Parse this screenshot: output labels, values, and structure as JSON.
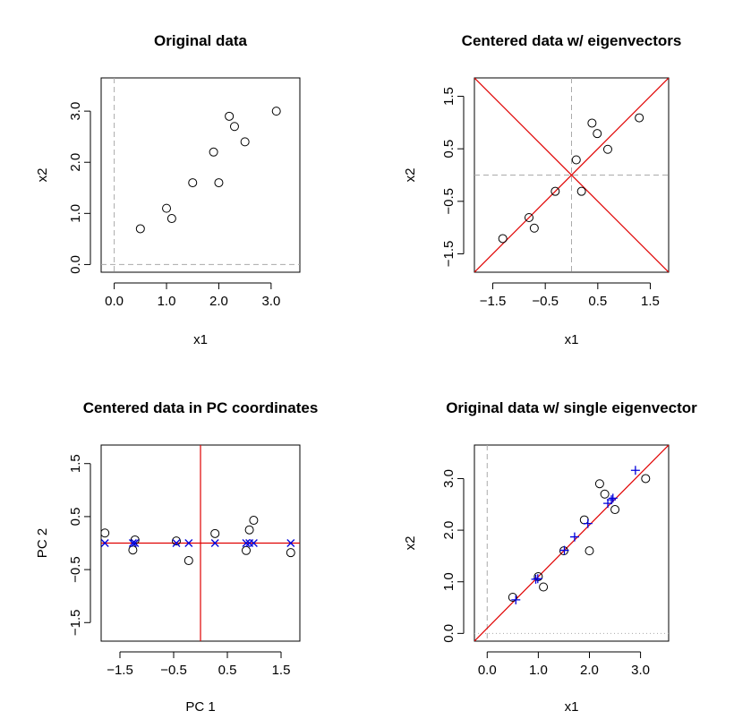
{
  "colors": {
    "red": "#e00000",
    "blue": "#0000dd",
    "guide": "#aaaaaa"
  },
  "chart_data": [
    {
      "type": "scatter",
      "title": "Original data",
      "xlabel": "x1",
      "ylabel": "x2",
      "xlim": [
        -0.25,
        3.55
      ],
      "ylim": [
        -0.15,
        3.65
      ],
      "xticks": [
        0.0,
        1.0,
        2.0,
        3.0
      ],
      "xticklabels": [
        "0.0",
        "1.0",
        "2.0",
        "3.0"
      ],
      "yticks": [
        0.0,
        1.0,
        2.0,
        3.0
      ],
      "yticklabels": [
        "0.0",
        "1.0",
        "2.0",
        "3.0"
      ],
      "guides": [
        {
          "kind": "v",
          "at": 0,
          "style": "dashed"
        },
        {
          "kind": "h",
          "at": 0,
          "style": "dashed"
        }
      ],
      "series": [
        {
          "marker": "circle",
          "color": "#000000",
          "x": [
            2.5,
            0.5,
            2.2,
            1.9,
            3.1,
            2.3,
            2.0,
            1.0,
            1.5,
            1.1
          ],
          "y": [
            2.4,
            0.7,
            2.9,
            2.2,
            3.0,
            2.7,
            1.6,
            1.1,
            1.6,
            0.9
          ]
        }
      ],
      "lines": []
    },
    {
      "type": "scatter",
      "title": "Centered data w/ eigenvectors",
      "xlabel": "x1",
      "ylabel": "x2",
      "xlim": [
        -1.85,
        1.85
      ],
      "ylim": [
        -1.85,
        1.85
      ],
      "xticks": [
        -1.5,
        -0.5,
        0.5,
        1.5
      ],
      "xticklabels": [
        "−1.5",
        "−0.5",
        "0.5",
        "1.5"
      ],
      "yticks": [
        -1.5,
        -0.5,
        0.5,
        1.5
      ],
      "yticklabels": [
        "−1.5",
        "−0.5",
        "0.5",
        "1.5"
      ],
      "guides": [
        {
          "kind": "v",
          "at": 0,
          "style": "dashed"
        },
        {
          "kind": "h",
          "at": 0,
          "style": "dashed"
        }
      ],
      "series": [
        {
          "marker": "circle",
          "color": "#000000",
          "x": [
            0.69,
            -1.31,
            0.39,
            0.09,
            1.29,
            0.49,
            0.19,
            -0.81,
            -0.31,
            -0.71
          ],
          "y": [
            0.49,
            -1.21,
            0.99,
            0.29,
            1.09,
            0.79,
            -0.31,
            -0.81,
            -0.31,
            -1.01
          ]
        }
      ],
      "lines": [
        {
          "slope": 1.0,
          "intercept": 0.0,
          "color": "#e00000"
        },
        {
          "slope": -1.0,
          "intercept": 0.0,
          "color": "#e00000"
        }
      ]
    },
    {
      "type": "scatter",
      "title": "Centered data in PC coordinates",
      "xlabel": "PC 1",
      "ylabel": "PC 2",
      "xlim": [
        -1.85,
        1.85
      ],
      "ylim": [
        -1.85,
        1.85
      ],
      "xticks": [
        -1.5,
        -0.5,
        0.5,
        1.5
      ],
      "xticklabels": [
        "−1.5",
        "−0.5",
        "0.5",
        "1.5"
      ],
      "yticks": [
        -1.5,
        -0.5,
        0.5,
        1.5
      ],
      "yticklabels": [
        "−1.5",
        "−0.5",
        "0.5",
        "1.5"
      ],
      "guides": [],
      "series": [
        {
          "marker": "circle",
          "color": "#000000",
          "x": [
            -1.78,
            -1.22,
            -1.26,
            -0.45,
            -0.22,
            0.27,
            0.91,
            0.85,
            0.99,
            1.68
          ],
          "y": [
            0.19,
            0.06,
            -0.13,
            0.04,
            -0.33,
            0.18,
            0.25,
            -0.14,
            0.43,
            -0.18
          ]
        },
        {
          "marker": "cross",
          "color": "#0000dd",
          "x": [
            -1.78,
            -1.26,
            -1.22,
            -0.45,
            -0.22,
            0.27,
            0.85,
            0.91,
            0.99,
            1.68
          ],
          "y": [
            0,
            0,
            0,
            0,
            0,
            0,
            0,
            0,
            0,
            0
          ]
        }
      ],
      "lines": [
        {
          "horizontal": 0,
          "color": "#e00000"
        },
        {
          "vertical": 0,
          "color": "#e00000"
        }
      ]
    },
    {
      "type": "scatter",
      "title": "Original data w/ single eigenvector",
      "xlabel": "x1",
      "ylabel": "x2",
      "xlim": [
        -0.25,
        3.55
      ],
      "ylim": [
        -0.15,
        3.65
      ],
      "xticks": [
        0.0,
        1.0,
        2.0,
        3.0
      ],
      "xticklabels": [
        "0.0",
        "1.0",
        "2.0",
        "3.0"
      ],
      "yticks": [
        0.0,
        1.0,
        2.0,
        3.0
      ],
      "yticklabels": [
        "0.0",
        "1.0",
        "2.0",
        "3.0"
      ],
      "guides": [
        {
          "kind": "v",
          "at": 0,
          "style": "dashed"
        },
        {
          "kind": "h",
          "at": 0,
          "style": "dotted"
        }
      ],
      "series": [
        {
          "marker": "circle",
          "color": "#000000",
          "x": [
            2.5,
            0.5,
            2.2,
            1.9,
            3.1,
            2.3,
            2.0,
            1.0,
            1.5,
            1.1
          ],
          "y": [
            2.4,
            0.7,
            2.9,
            2.2,
            3.0,
            2.7,
            1.6,
            1.1,
            1.6,
            0.9
          ]
        },
        {
          "marker": "plus",
          "color": "#0000dd",
          "x": [
            2.43,
            0.56,
            2.36,
            1.97,
            2.9,
            2.46,
            1.71,
            0.99,
            1.51,
            0.95
          ],
          "y": [
            2.59,
            0.65,
            2.52,
            2.13,
            3.16,
            2.62,
            1.87,
            1.06,
            1.61,
            1.05
          ]
        }
      ],
      "lines": [
        {
          "slope": 1.0,
          "intercept": 0.1,
          "color": "#e00000"
        }
      ]
    }
  ]
}
